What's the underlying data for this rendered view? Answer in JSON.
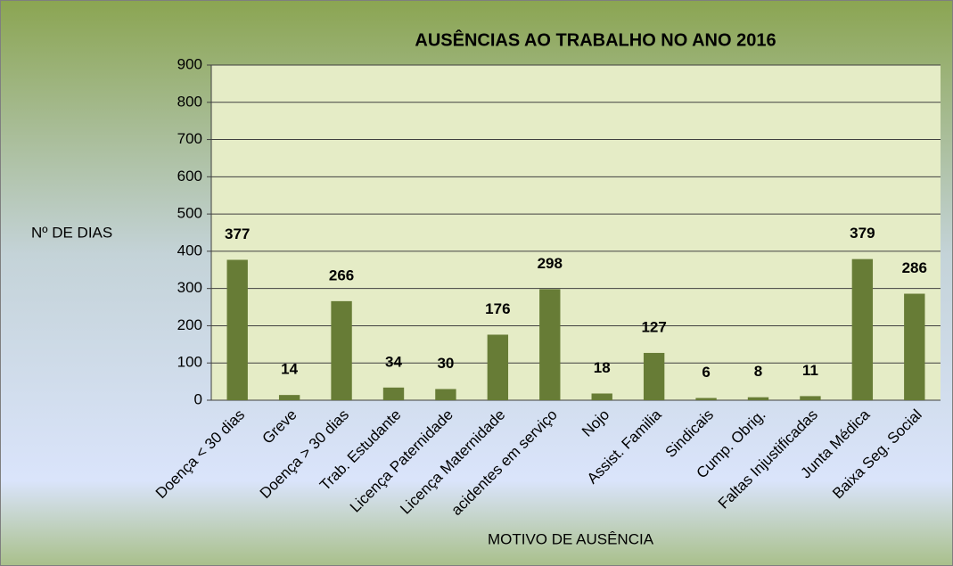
{
  "chart_data": {
    "type": "bar",
    "title": "AUSÊNCIAS AO TRABALHO NO ANO 2016",
    "y_axis_label": "Nº DE DIAS",
    "x_axis_label": "MOTIVO DE AUSÊNCIA",
    "categories": [
      "Doença < 30 dias",
      "Greve",
      "Doença > 30 dias",
      "Trab. Estudante",
      "Licença Paternidade",
      "Licença Maternidade",
      "acidentes em serviço",
      "Nojo",
      "Assist.  Familia",
      "Sindicais",
      "Cump. Obrig.",
      "Faltas Injustificadas",
      "Junta Médica",
      "Baixa Seg. Social"
    ],
    "values": [
      377,
      14,
      266,
      34,
      30,
      176,
      298,
      18,
      127,
      6,
      8,
      11,
      379,
      286
    ],
    "color": "#677c36",
    "ylim": [
      0,
      900
    ],
    "yticks": [
      0,
      100,
      200,
      300,
      400,
      500,
      600,
      700,
      800,
      900
    ],
    "grid": true
  }
}
